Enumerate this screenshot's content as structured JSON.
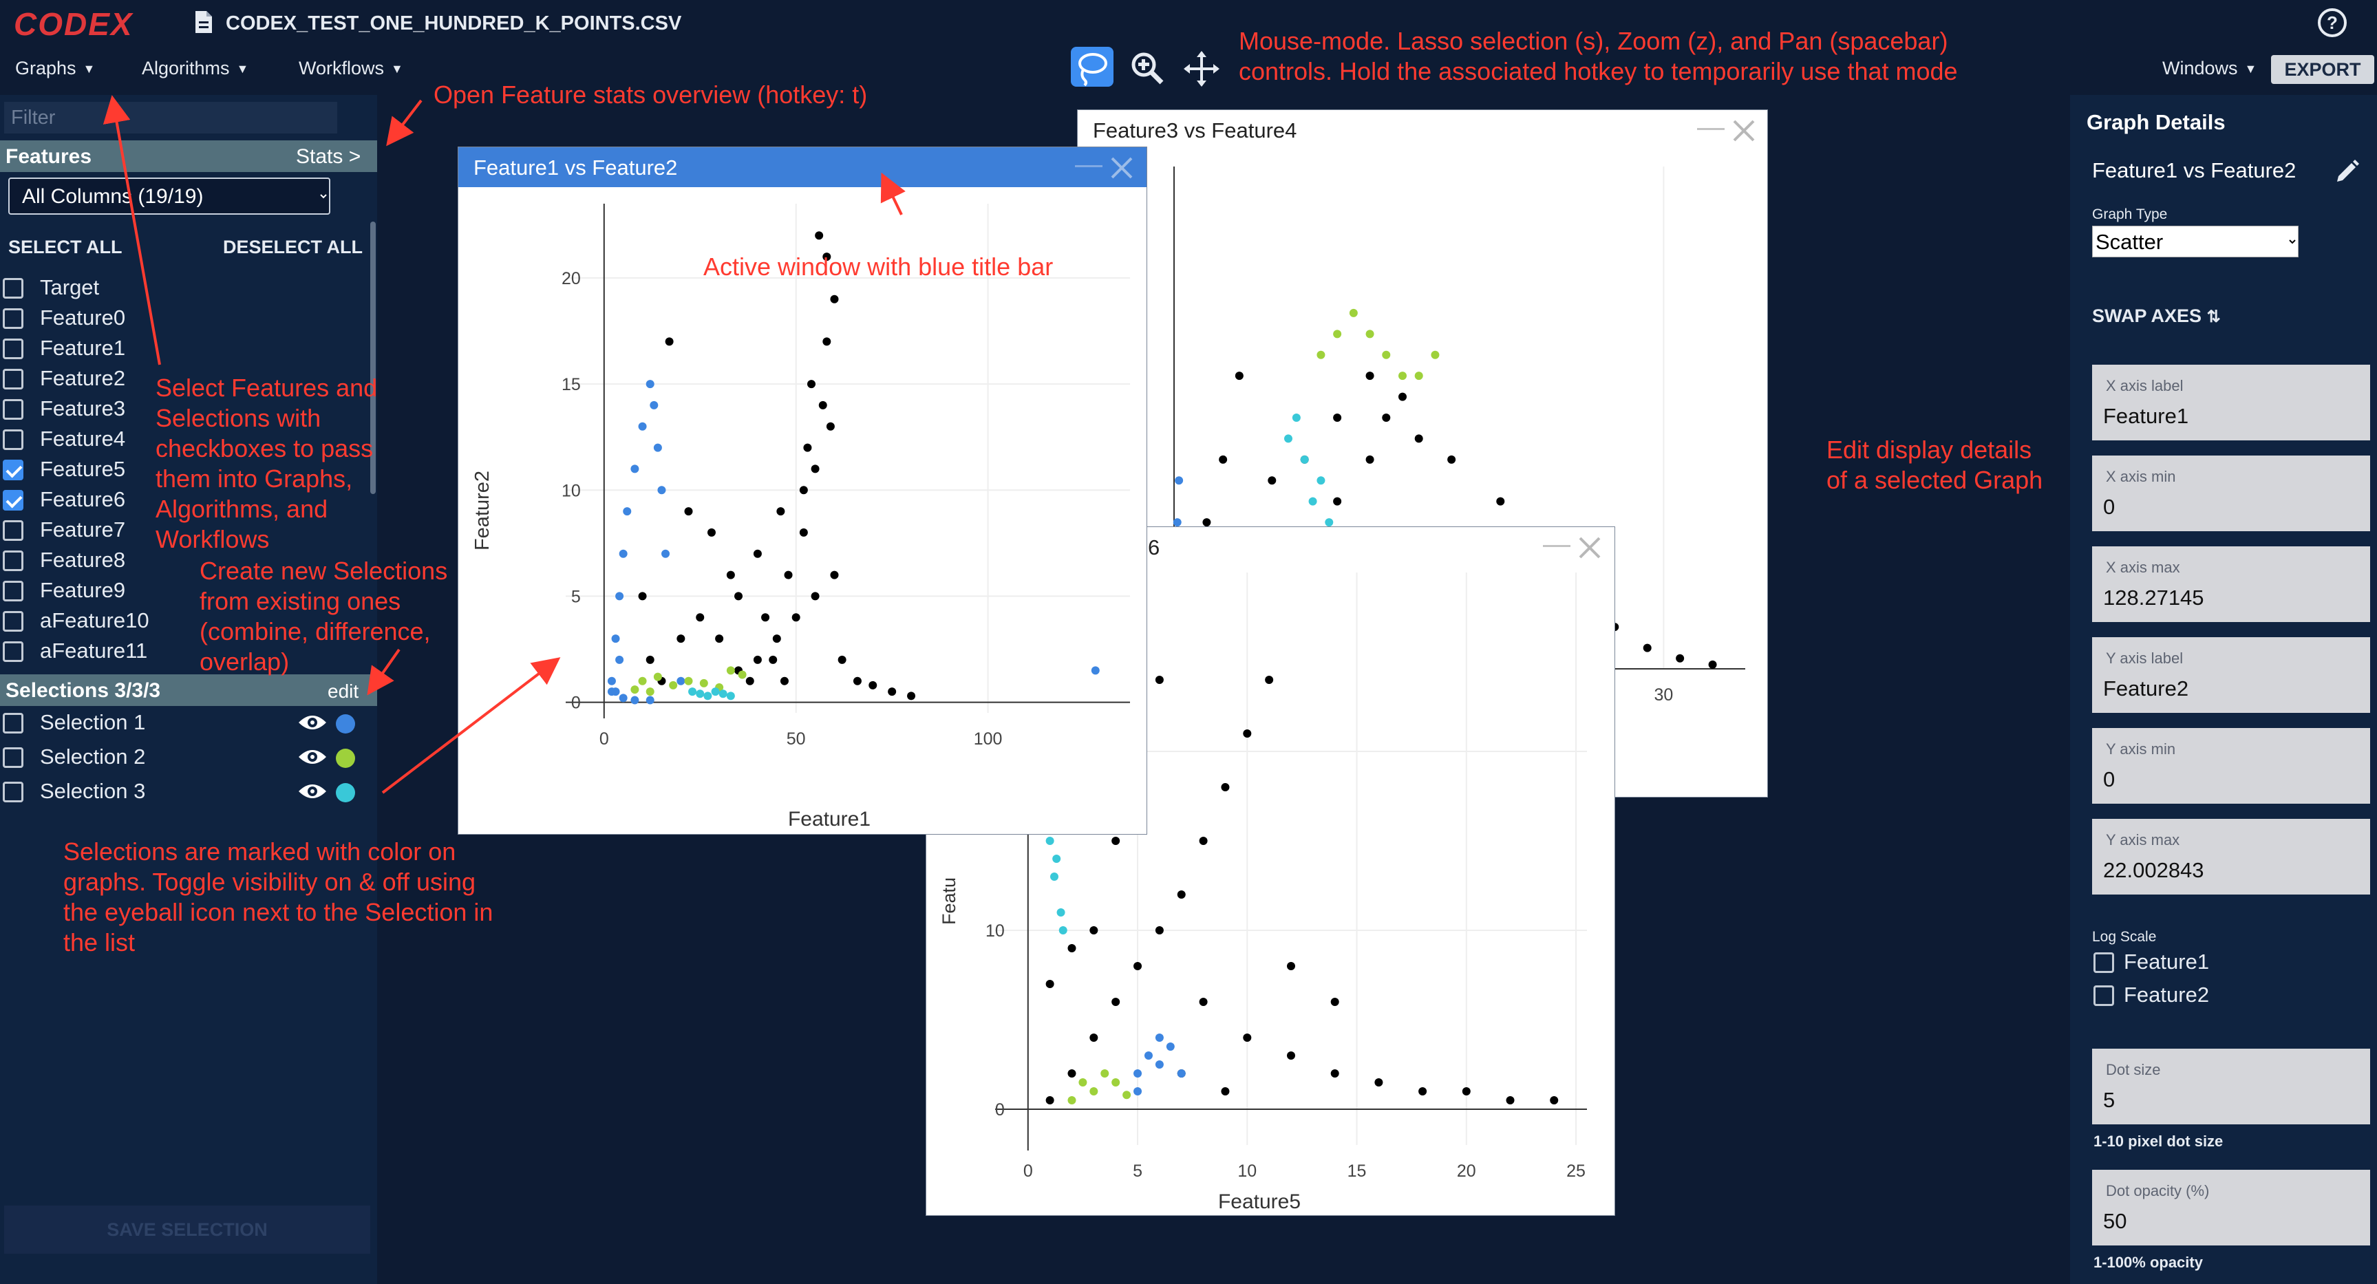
{
  "app": {
    "logo": "CODEX",
    "file_name": "CODEX_TEST_ONE_HUNDRED_K_POINTS.CSV",
    "menus": [
      "Graphs",
      "Algorithms",
      "Workflows"
    ],
    "windows_menu": "Windows",
    "export_label": "EXPORT",
    "active_mode": "lasso"
  },
  "annotations": {
    "mouse_mode": [
      "Mouse-mode. Lasso selection (s), Zoom (z), and Pan (spacebar)",
      "controls. Hold the associated hotkey to temporarily use that mode"
    ],
    "stats_overview": "Open Feature stats overview (hotkey: t)",
    "active_window": "Active window with blue title bar",
    "select_features": [
      "Select Features and",
      "Selections with",
      "checkboxes to pass",
      "them into Graphs,",
      "Algorithms, and",
      "Workflows"
    ],
    "create_selections": [
      "Create new Selections",
      "from existing ones",
      "(combine, difference,",
      "overlap)"
    ],
    "selection_colors": [
      "Selections are marked with color on",
      "graphs. Toggle visibility on & off using",
      "the eyeball icon next to the Selection in",
      "the list"
    ],
    "edit_display": [
      "Edit display details",
      "of a selected Graph"
    ]
  },
  "left_panel": {
    "filter_placeholder": "Filter",
    "features_header": "Features",
    "stats_link": "Stats >",
    "column_select": "All Columns (19/19)",
    "select_all": "SELECT ALL",
    "deselect_all": "DESELECT ALL",
    "features": [
      {
        "label": "Target",
        "checked": false
      },
      {
        "label": "Feature0",
        "checked": false
      },
      {
        "label": "Feature1",
        "checked": false
      },
      {
        "label": "Feature2",
        "checked": false
      },
      {
        "label": "Feature3",
        "checked": false
      },
      {
        "label": "Feature4",
        "checked": false
      },
      {
        "label": "Feature5",
        "checked": true
      },
      {
        "label": "Feature6",
        "checked": true
      },
      {
        "label": "Feature7",
        "checked": false
      },
      {
        "label": "Feature8",
        "checked": false
      },
      {
        "label": "Feature9",
        "checked": false
      },
      {
        "label": "aFeature10",
        "checked": false
      },
      {
        "label": "aFeature11",
        "checked": false
      }
    ],
    "selections_header": "Selections 3/3/3",
    "selections_edit": "edit",
    "selections": [
      {
        "label": "Selection 1",
        "color": "#3d85e0"
      },
      {
        "label": "Selection 2",
        "color": "#9ed13b"
      },
      {
        "label": "Selection 3",
        "color": "#39c8d8"
      }
    ],
    "save_selection": "SAVE SELECTION"
  },
  "windows": {
    "w1": {
      "title": "Feature1 vs Feature2",
      "xlabel": "Feature1",
      "ylabel": "Feature2"
    },
    "w2": {
      "title": "Feature3 vs Feature4"
    },
    "w3": {
      "title_fragment": "6",
      "xlabel": "Feature5",
      "ylabel_fragment": "Featu"
    }
  },
  "chart_data": [
    {
      "type": "scatter",
      "title": "Feature1 vs Feature2",
      "xlabel": "Feature1",
      "ylabel": "Feature2",
      "xlim": [
        0,
        128.27145
      ],
      "ylim": [
        0,
        22.002843
      ],
      "x_ticks": [
        0,
        50,
        100
      ],
      "y_ticks": [
        0,
        5,
        10,
        15,
        20
      ],
      "series": [
        {
          "color": "#000000",
          "points": [
            [
              35,
              1.5
            ],
            [
              40,
              2
            ],
            [
              45,
              3
            ],
            [
              50,
              4
            ],
            [
              55,
              5
            ],
            [
              60,
              6
            ],
            [
              38,
              1
            ],
            [
              42,
              4
            ],
            [
              48,
              6
            ],
            [
              52,
              8
            ],
            [
              55,
              11
            ],
            [
              57,
              14
            ],
            [
              58,
              17
            ],
            [
              60,
              19
            ],
            [
              58,
              21
            ],
            [
              56,
              22
            ],
            [
              52,
              10
            ],
            [
              46,
              9
            ],
            [
              40,
              7
            ],
            [
              35,
              5
            ],
            [
              30,
              3
            ],
            [
              25,
              4
            ],
            [
              20,
              3
            ],
            [
              15,
              1
            ],
            [
              12,
              2
            ],
            [
              10,
              5
            ],
            [
              17,
              17
            ],
            [
              22,
              9
            ],
            [
              28,
              8
            ],
            [
              33,
              6
            ],
            [
              62,
              2
            ],
            [
              66,
              1
            ],
            [
              70,
              0.8
            ],
            [
              75,
              0.5
            ],
            [
              80,
              0.3
            ],
            [
              53,
              12
            ],
            [
              54,
              15
            ],
            [
              59,
              13
            ],
            [
              44,
              2
            ],
            [
              47,
              1
            ]
          ]
        },
        {
          "color": "#3d85e0",
          "points": [
            [
              2,
              1
            ],
            [
              3,
              3
            ],
            [
              4,
              5
            ],
            [
              5,
              7
            ],
            [
              6,
              9
            ],
            [
              8,
              11
            ],
            [
              10,
              13
            ],
            [
              12,
              15
            ],
            [
              13,
              14
            ],
            [
              14,
              12
            ],
            [
              15,
              10
            ],
            [
              16,
              7
            ],
            [
              3,
              0.5
            ],
            [
              5,
              0.2
            ],
            [
              8,
              0.1
            ],
            [
              12,
              0.1
            ],
            [
              4,
              2
            ],
            [
              2,
              0.5
            ],
            [
              20,
              1
            ],
            [
              128,
              1.5
            ]
          ]
        },
        {
          "color": "#9ed13b",
          "points": [
            [
              8,
              0.6
            ],
            [
              10,
              1
            ],
            [
              14,
              1.2
            ],
            [
              18,
              0.8
            ],
            [
              22,
              1
            ],
            [
              26,
              0.9
            ],
            [
              30,
              0.7
            ],
            [
              33,
              1.5
            ],
            [
              36,
              1.3
            ],
            [
              12,
              0.5
            ]
          ]
        },
        {
          "color": "#39c8d8",
          "points": [
            [
              25,
              0.4
            ],
            [
              27,
              0.3
            ],
            [
              29,
              0.5
            ],
            [
              31,
              0.4
            ],
            [
              23,
              0.5
            ],
            [
              33,
              0.3
            ]
          ]
        }
      ]
    },
    {
      "type": "scatter",
      "title": "Feature3 vs Feature4",
      "x_ticks": [
        30
      ],
      "series": [
        {
          "color": "#000000",
          "points": [
            [
              5,
              4
            ],
            [
              8,
              6
            ],
            [
              10,
              8
            ],
            [
              12,
              10
            ],
            [
              13,
              12
            ],
            [
              14,
              13
            ],
            [
              12,
              14
            ],
            [
              10,
              12
            ],
            [
              8,
              10
            ],
            [
              6,
              9
            ],
            [
              15,
              11
            ],
            [
              17,
              10
            ],
            [
              20,
              8
            ],
            [
              22,
              6
            ],
            [
              25,
              4
            ],
            [
              27,
              2
            ],
            [
              29,
              1
            ],
            [
              31,
              0.5
            ],
            [
              33,
              0.2
            ],
            [
              3,
              10
            ],
            [
              4,
              14
            ],
            [
              2,
              7
            ]
          ]
        },
        {
          "color": "#3d85e0",
          "points": [
            [
              0.2,
              1
            ],
            [
              0.3,
              3
            ],
            [
              0.4,
              5
            ],
            [
              0.2,
              7
            ],
            [
              0.3,
              9
            ],
            [
              0.2,
              2
            ]
          ]
        },
        {
          "color": "#9ed13b",
          "points": [
            [
              9,
              15
            ],
            [
              10,
              16
            ],
            [
              11,
              17
            ],
            [
              12,
              16
            ],
            [
              13,
              15
            ],
            [
              14,
              14
            ],
            [
              15,
              14
            ],
            [
              16,
              15
            ]
          ]
        },
        {
          "color": "#39c8d8",
          "points": [
            [
              7,
              11
            ],
            [
              8,
              10
            ],
            [
              7.5,
              12
            ],
            [
              9,
              9
            ],
            [
              8.5,
              8
            ],
            [
              9.5,
              7
            ]
          ]
        }
      ]
    },
    {
      "type": "scatter",
      "xlabel": "Feature5",
      "x_ticks": [
        0,
        5,
        10,
        15,
        20,
        25
      ],
      "y_ticks": [
        0,
        10,
        20
      ],
      "series": [
        {
          "color": "#000000",
          "points": [
            [
              1,
              0.5
            ],
            [
              2,
              2
            ],
            [
              3,
              4
            ],
            [
              4,
              6
            ],
            [
              5,
              8
            ],
            [
              6,
              10
            ],
            [
              7,
              12
            ],
            [
              8,
              15
            ],
            [
              9,
              18
            ],
            [
              10,
              21
            ],
            [
              11,
              24
            ],
            [
              6,
              24
            ],
            [
              5,
              20
            ],
            [
              4,
              15
            ],
            [
              3,
              10
            ],
            [
              8,
              6
            ],
            [
              10,
              4
            ],
            [
              12,
              3
            ],
            [
              14,
              2
            ],
            [
              16,
              1.5
            ],
            [
              18,
              1
            ],
            [
              20,
              1
            ],
            [
              22,
              0.5
            ],
            [
              24,
              0.5
            ],
            [
              12,
              8
            ],
            [
              14,
              6
            ],
            [
              2,
              9
            ],
            [
              1,
              7
            ],
            [
              7,
              2
            ],
            [
              9,
              1
            ]
          ]
        },
        {
          "color": "#3d85e0",
          "points": [
            [
              5,
              2
            ],
            [
              5.5,
              3
            ],
            [
              6,
              2.5
            ],
            [
              6.5,
              3.5
            ],
            [
              7,
              2
            ],
            [
              6,
              4
            ],
            [
              5,
              1
            ]
          ]
        },
        {
          "color": "#9ed13b",
          "points": [
            [
              2.5,
              1.5
            ],
            [
              3,
              1
            ],
            [
              3.5,
              2
            ],
            [
              4,
              1.5
            ],
            [
              4.5,
              0.8
            ],
            [
              2,
              0.5
            ]
          ]
        },
        {
          "color": "#39c8d8",
          "points": [
            [
              0.5,
              19
            ],
            [
              0.8,
              17
            ],
            [
              1,
              15
            ],
            [
              1.2,
              13
            ],
            [
              1.5,
              11
            ],
            [
              1.6,
              10
            ],
            [
              1.3,
              14
            ],
            [
              0.9,
              18
            ]
          ]
        }
      ]
    }
  ],
  "graph_details": {
    "title": "Graph Details",
    "graph_name": "Feature1 vs Feature2",
    "graph_type_label": "Graph Type",
    "graph_type_value": "Scatter",
    "swap_axes": "SWAP AXES",
    "fields": [
      {
        "label": "X axis label",
        "value": "Feature1"
      },
      {
        "label": "X axis min",
        "value": "0"
      },
      {
        "label": "X axis max",
        "value": "128.27145"
      },
      {
        "label": "Y axis label",
        "value": "Feature2"
      },
      {
        "label": "Y axis min",
        "value": "0"
      },
      {
        "label": "Y axis max",
        "value": "22.002843"
      }
    ],
    "log_scale_label": "Log Scale",
    "log_scale": [
      {
        "label": "Feature1",
        "checked": false
      },
      {
        "label": "Feature2",
        "checked": false
      }
    ],
    "dot_size": {
      "label": "Dot size",
      "value": "5",
      "helper": "1-10 pixel dot size"
    },
    "dot_opacity": {
      "label": "Dot opacity (%)",
      "value": "50",
      "helper": "1-100% opacity"
    }
  }
}
